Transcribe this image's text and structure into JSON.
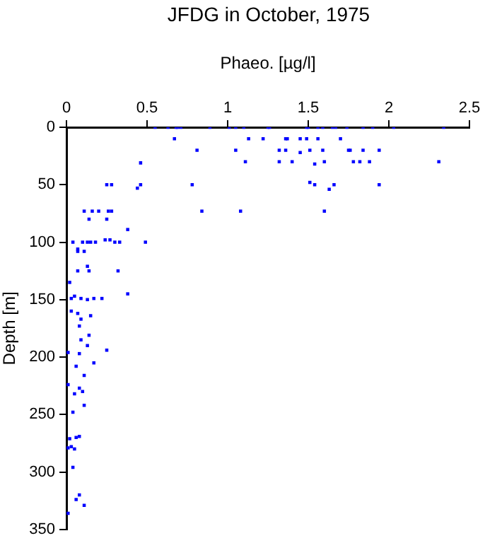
{
  "chart_data": {
    "type": "scatter",
    "title": "JFDG in October, 1975",
    "xlabel": "Phaeo. [µg/l]",
    "ylabel": "Depth [m]",
    "xlim": [
      0,
      2.5
    ],
    "xticks": [
      0,
      0.5,
      1,
      1.5,
      2,
      2.5
    ],
    "ylim": [
      350,
      0
    ],
    "yticks": [
      0,
      50,
      100,
      150,
      200,
      250,
      300,
      350
    ],
    "grid": false,
    "legend": false,
    "marker": "square",
    "series": [
      {
        "color": "#0000ff",
        "x": [
          0.55,
          0.63,
          0.68,
          0.69,
          0.71,
          0.89,
          1.01,
          1.05,
          1.1,
          1.25,
          1.26,
          1.49,
          1.5,
          1.56,
          1.59,
          1.65,
          1.67,
          1.74,
          1.84,
          1.9,
          2.03,
          2.34,
          0.67,
          1.13,
          1.22,
          1.36,
          1.37,
          1.45,
          1.49,
          1.56,
          1.7,
          0.81,
          1.05,
          1.32,
          1.36,
          1.45,
          1.51,
          1.59,
          1.75,
          1.76,
          1.84,
          1.94,
          0.46,
          1.11,
          1.32,
          1.4,
          1.54,
          1.6,
          1.78,
          1.82,
          1.88,
          2.31,
          0.25,
          0.28,
          0.44,
          0.46,
          0.78,
          1.51,
          1.54,
          1.63,
          1.66,
          1.94,
          0.11,
          0.14,
          0.16,
          0.2,
          0.25,
          0.26,
          0.28,
          0.84,
          1.08,
          1.6,
          0.38,
          0.49,
          0.04,
          0.07,
          0.07,
          0.11,
          0.1,
          0.13,
          0.15,
          0.18,
          0.24,
          0.27,
          0.3,
          0.33,
          0.07,
          0.13,
          0.14,
          0.32,
          0.02,
          0.05,
          0.03,
          0.09,
          0.13,
          0.17,
          0.22,
          0.38,
          0.03,
          0.07,
          0.15,
          0.09,
          0.08,
          0.14,
          0.09,
          0.13,
          0.25,
          0.01,
          0.08,
          0.17,
          0.06,
          0.11,
          0.01,
          0.08,
          0.1,
          0.05,
          0.11,
          0.04,
          0.03,
          0.05,
          0.01,
          0.02,
          0.06,
          0.08,
          0.04,
          0.08,
          0.06,
          0.11,
          0.01
        ],
        "values": [
          0,
          0,
          0,
          0,
          0,
          0,
          0,
          0,
          0,
          0,
          0,
          0,
          0,
          0,
          0,
          0,
          0,
          0,
          0,
          0,
          0,
          0,
          10,
          10,
          10,
          10,
          10,
          10,
          10,
          10,
          10,
          20,
          20,
          20,
          20,
          22,
          20,
          20,
          20,
          20,
          20,
          20,
          31,
          30,
          30,
          30,
          32,
          30,
          30,
          30,
          30,
          30,
          50,
          50,
          53,
          50,
          50,
          48,
          50,
          54,
          50,
          50,
          73,
          80,
          73,
          73,
          80,
          73,
          73,
          73,
          73,
          73,
          89,
          100,
          100,
          106,
          108,
          108,
          100,
          100,
          100,
          100,
          98,
          98,
          100,
          100,
          125,
          121,
          125,
          125,
          135,
          147,
          149,
          149,
          150,
          149,
          149,
          145,
          160,
          162,
          164,
          167,
          173,
          181,
          185,
          190,
          194,
          196,
          197,
          205,
          208,
          216,
          224,
          227,
          230,
          232,
          242,
          248,
          278,
          280,
          279,
          271,
          270,
          269,
          296,
          320,
          324,
          329,
          336
        ]
      }
    ]
  }
}
